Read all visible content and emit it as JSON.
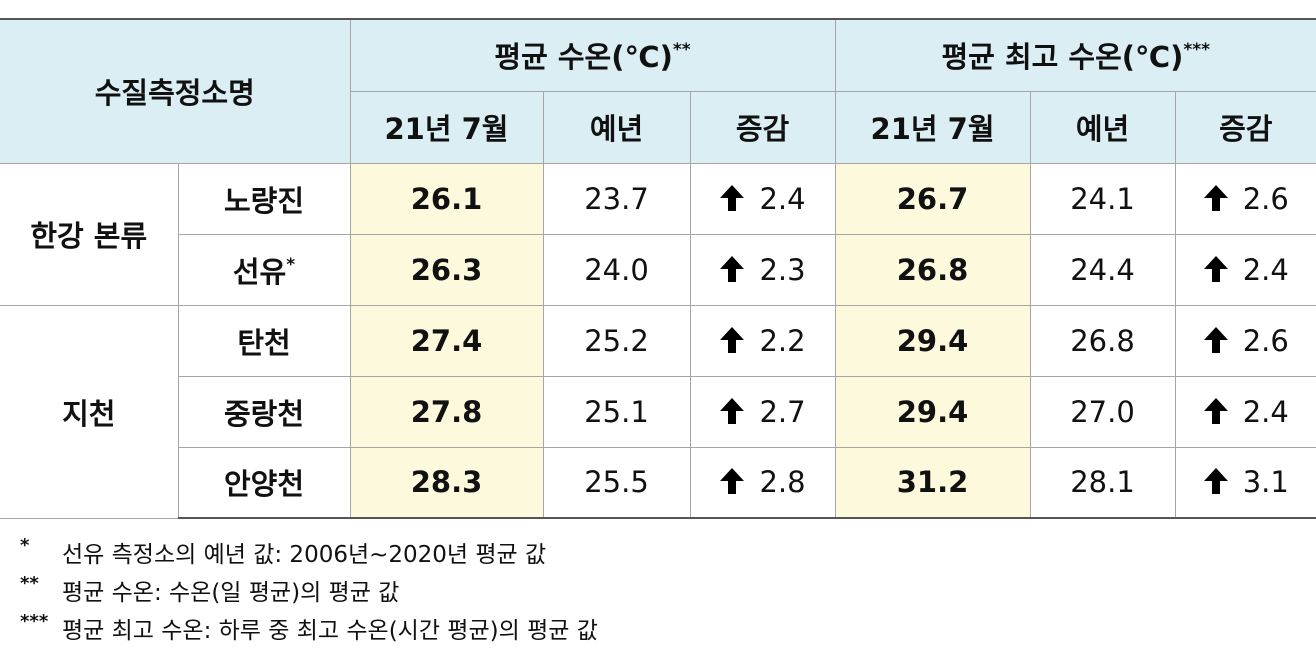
{
  "table": {
    "header": {
      "station": "수질측정소명",
      "groups": [
        {
          "title": "평균 수온(℃)",
          "mark": "**"
        },
        {
          "title": "평균 최고 수온(℃)",
          "mark": "***"
        }
      ],
      "subheaders": [
        "21년 7월",
        "예년",
        "증감",
        "21년 7월",
        "예년",
        "증감"
      ]
    },
    "sections": [
      {
        "name": "한강 본류",
        "rows": [
          {
            "station": "노량진",
            "values": [
              "26.1",
              "23.7",
              "2.4",
              "26.7",
              "24.1",
              "2.6"
            ]
          },
          {
            "station": "선유",
            "mark": "*",
            "values": [
              "26.3",
              "24.0",
              "2.3",
              "26.8",
              "24.4",
              "2.4"
            ]
          }
        ]
      },
      {
        "name": "지천",
        "rows": [
          {
            "station": "탄천",
            "values": [
              "27.4",
              "25.2",
              "2.2",
              "29.4",
              "26.8",
              "2.6"
            ]
          },
          {
            "station": "중랑천",
            "values": [
              "27.8",
              "25.1",
              "2.7",
              "29.4",
              "27.0",
              "2.4"
            ]
          },
          {
            "station": "안양천",
            "values": [
              "28.3",
              "25.5",
              "2.8",
              "31.2",
              "28.1",
              "3.1"
            ]
          }
        ]
      }
    ]
  },
  "footnotes": [
    {
      "mark": "*",
      "text": "선유 측정소의 예년 값: 2006년~2020년 평균 값"
    },
    {
      "mark": "**",
      "text": "평균 수온: 수온(일 평균)의 평균 값"
    },
    {
      "mark": "***",
      "text": "평균 최고 수온: 하루 중 최고 수온(시간 평균)의 평균 값"
    }
  ]
}
